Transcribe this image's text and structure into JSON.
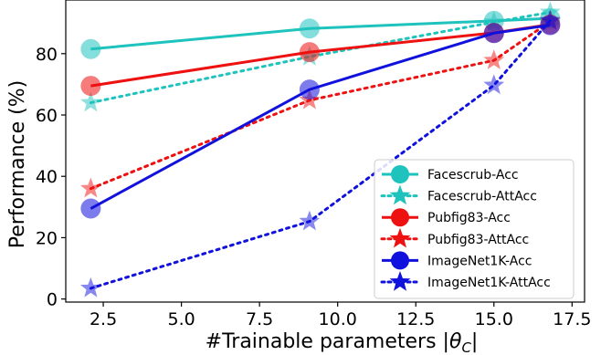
{
  "chart_data": {
    "type": "line",
    "title": "",
    "xlabel": "#Trainable parameters |θ_C|",
    "ylabel": "Performance (%)",
    "xlim": [
      1.3,
      17.9
    ],
    "ylim": [
      -1,
      97.5
    ],
    "xticks": [
      2.5,
      5.0,
      7.5,
      10.0,
      12.5,
      15.0,
      17.5
    ],
    "xtick_labels": [
      "2.5",
      "5.0",
      "7.5",
      "10.0",
      "12.5",
      "15.0",
      "17.5"
    ],
    "yticks": [
      0,
      20,
      40,
      60,
      80
    ],
    "ytick_labels": [
      "0",
      "20",
      "40",
      "60",
      "80"
    ],
    "grid": false,
    "legend_position": "lower-right",
    "series": [
      {
        "name": "Facescrub-Acc",
        "color": "#1fc3bd",
        "linestyle": "solid",
        "marker": "circle",
        "x": [
          2.1,
          9.1,
          15.0,
          16.8
        ],
        "y": [
          81.5,
          88.2,
          90.7,
          91.5
        ]
      },
      {
        "name": "Facescrub-AttAcc",
        "color": "#1fc3bd",
        "linestyle": "dotted",
        "marker": "star",
        "x": [
          2.1,
          9.1,
          15.0,
          16.8
        ],
        "y": [
          64.0,
          79.0,
          90.3,
          93.5
        ]
      },
      {
        "name": "Pubfig83-Acc",
        "color": "#ee1111",
        "linestyle": "solid",
        "marker": "circle",
        "x": [
          2.1,
          9.1,
          15.0,
          16.8
        ],
        "y": [
          69.5,
          80.5,
          86.8,
          89.5
        ]
      },
      {
        "name": "Pubfig83-AttAcc",
        "color": "#ee1111",
        "linestyle": "dotted",
        "marker": "star",
        "x": [
          2.1,
          9.1,
          15.0,
          16.8
        ],
        "y": [
          36.0,
          64.8,
          77.8,
          90.5
        ]
      },
      {
        "name": "ImageNet1K-Acc",
        "color": "#1111dd",
        "linestyle": "solid",
        "marker": "circle",
        "x": [
          2.1,
          9.1,
          15.0,
          16.8
        ],
        "y": [
          29.5,
          68.3,
          86.7,
          89.3
        ]
      },
      {
        "name": "ImageNet1K-AttAcc",
        "color": "#1111dd",
        "linestyle": "dotted",
        "marker": "star",
        "x": [
          2.1,
          9.1,
          15.0,
          16.8
        ],
        "y": [
          3.5,
          25.3,
          69.7,
          90.8
        ]
      }
    ]
  }
}
